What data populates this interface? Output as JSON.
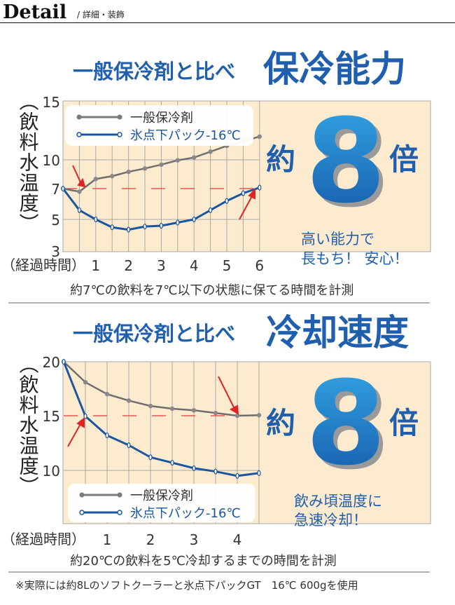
{
  "header": {
    "title": "Detail",
    "subtitle": "/ 詳細・装飾"
  },
  "section1": {
    "heading_small": "一般保冷剤と比べ",
    "heading_large": "保冷能力",
    "ratio_prefix": "約",
    "ratio_number": "8",
    "ratio_suffix": "倍",
    "tagline": [
      "高い能力で",
      "長もち！ 安心！"
    ],
    "caption": "約7℃の飲料を7℃以下の状態に保てる時間を計測"
  },
  "section2": {
    "heading_small": "一般保冷剤と比べ",
    "heading_large": "冷却速度",
    "ratio_prefix": "約",
    "ratio_number": "8",
    "ratio_suffix": "倍",
    "tagline": [
      "飲み頃温度に",
      "急速冷却！"
    ],
    "caption": "約20℃の飲料を5℃冷却するまでの時間を計測"
  },
  "footnote": "※実際には約8Lのソフトクーラーと氷点下パックGT　16℃ 600gを使用",
  "colors": {
    "accent_blue": "#1f5fae",
    "panel_bg": "#fdebd0",
    "general_line": "#6e6e6e",
    "product_line": "#1a56a0",
    "threshold": "#e23b3b"
  },
  "chart_data": [
    {
      "type": "line",
      "ylabel": "（飲料水温度）",
      "xlabel": "（経過時間）",
      "x_ticks": [
        "1",
        "2",
        "3",
        "4",
        "5",
        "6"
      ],
      "y_ticks": [
        "15",
        "10",
        "7",
        "5",
        "3"
      ],
      "ylim": [
        3,
        15
      ],
      "xlim": [
        0,
        6
      ],
      "grid": true,
      "legend": "top-left",
      "threshold": 7,
      "x": [
        0,
        0.5,
        1,
        1.5,
        2,
        2.5,
        3,
        3.5,
        4,
        4.5,
        5,
        5.5,
        6
      ],
      "series": [
        {
          "name": "一般保冷剤",
          "values": [
            7.0,
            6.8,
            8.0,
            8.3,
            8.75,
            9.1,
            9.5,
            9.95,
            10.2,
            10.7,
            11.2,
            11.6,
            12.0
          ]
        },
        {
          "name": "氷点下パック-16℃",
          "values": [
            7.0,
            5.6,
            5.0,
            4.5,
            4.35,
            4.55,
            4.6,
            4.8,
            5.0,
            5.6,
            6.2,
            6.7,
            7.1
          ]
        }
      ]
    },
    {
      "type": "line",
      "ylabel": "（飲料水温度）",
      "xlabel": "（経過時間）",
      "x_ticks": [
        "1",
        "2",
        "3",
        "4"
      ],
      "y_ticks": [
        "20",
        "15",
        "10"
      ],
      "ylim": [
        5.5,
        20
      ],
      "xlim": [
        0,
        4.5
      ],
      "grid": true,
      "legend": "bottom-left",
      "threshold": 15,
      "x": [
        0,
        0.5,
        1,
        1.5,
        2,
        2.5,
        3,
        3.5,
        4,
        4.5
      ],
      "series": [
        {
          "name": "一般保冷剤",
          "values": [
            20,
            18.1,
            17.0,
            16.4,
            15.9,
            15.65,
            15.5,
            15.25,
            15.0,
            15.05
          ]
        },
        {
          "name": "氷点下パック-16℃",
          "values": [
            20,
            14.95,
            13.2,
            12.3,
            11.2,
            10.7,
            10.2,
            9.9,
            9.5,
            9.75
          ]
        }
      ]
    }
  ]
}
